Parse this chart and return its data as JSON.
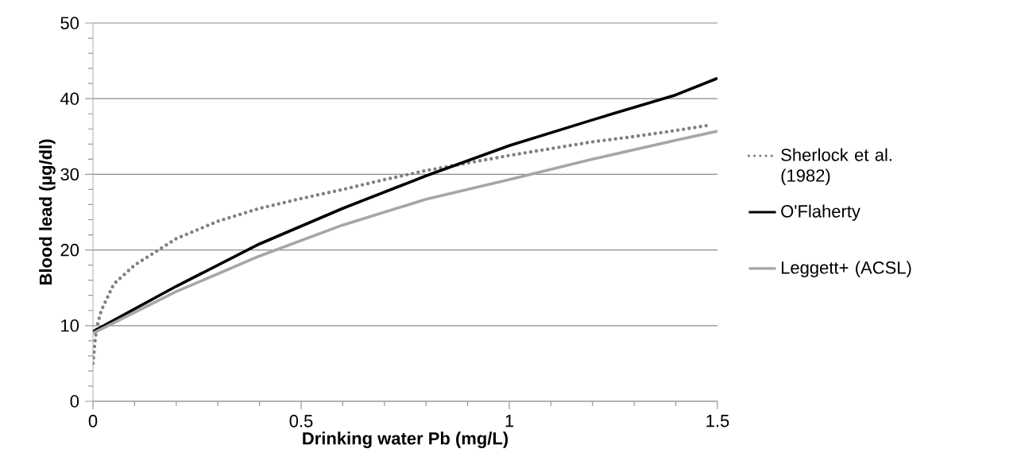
{
  "chart_data": {
    "type": "line",
    "xlabel": "Drinking water Pb (mg/L)",
    "ylabel": "Blood lead (µg/dl)",
    "xlim": [
      0,
      1.5
    ],
    "ylim": [
      0,
      50
    ],
    "xticks": [
      0,
      {
        "value": 0.1,
        "label": null
      },
      {
        "value": 0.2,
        "label": null
      },
      {
        "value": 0.3,
        "label": null
      },
      {
        "value": 0.4,
        "label": null
      },
      0.5,
      {
        "value": 0.6,
        "label": null
      },
      {
        "value": 0.7,
        "label": null
      },
      {
        "value": 0.8,
        "label": null
      },
      {
        "value": 0.9,
        "label": null
      },
      1,
      {
        "value": 1.1,
        "label": null
      },
      {
        "value": 1.2,
        "label": null
      },
      {
        "value": 1.3,
        "label": null
      },
      {
        "value": 1.4,
        "label": null
      },
      1.5
    ],
    "yticks": [
      0,
      {
        "value": 2,
        "label": null
      },
      {
        "value": 4,
        "label": null
      },
      {
        "value": 6,
        "label": null
      },
      {
        "value": 8,
        "label": null
      },
      10,
      {
        "value": 12,
        "label": null
      },
      {
        "value": 14,
        "label": null
      },
      {
        "value": 16,
        "label": null
      },
      {
        "value": 18,
        "label": null
      },
      20,
      {
        "value": 22,
        "label": null
      },
      {
        "value": 24,
        "label": null
      },
      {
        "value": 26,
        "label": null
      },
      {
        "value": 28,
        "label": null
      },
      30,
      {
        "value": 32,
        "label": null
      },
      {
        "value": 34,
        "label": null
      },
      {
        "value": 36,
        "label": null
      },
      {
        "value": 38,
        "label": null
      },
      40,
      {
        "value": 42,
        "label": null
      },
      {
        "value": 44,
        "label": null
      },
      {
        "value": 46,
        "label": null
      },
      {
        "value": 48,
        "label": null
      },
      50
    ],
    "grid": "y",
    "legend": "right",
    "series": [
      {
        "name": "Sherlock et al. (1982)",
        "color": "#808080",
        "line_style": "dotted",
        "x": [
          0,
          0.005,
          0.01,
          0.02,
          0.05,
          0.1,
          0.2,
          0.3,
          0.4,
          0.5,
          0.6,
          0.7,
          0.8,
          0.9,
          1.0,
          1.1,
          1.2,
          1.3,
          1.4,
          1.48
        ],
        "values": [
          5,
          8,
          10,
          12,
          15.5,
          18,
          21.5,
          23.8,
          25.5,
          26.8,
          28,
          29.3,
          30.5,
          31.5,
          32.5,
          33.4,
          34.3,
          35,
          35.8,
          36.5
        ]
      },
      {
        "name": "O'Flaherty",
        "color": "#000000",
        "line_style": "solid",
        "x": [
          0,
          0.2,
          0.4,
          0.6,
          0.8,
          1.0,
          1.2,
          1.4,
          1.5
        ],
        "values": [
          9.2,
          15.2,
          20.8,
          25.5,
          29.8,
          33.8,
          37.2,
          40.5,
          42.7
        ]
      },
      {
        "name": "Leggett+ (ACSL)",
        "color": "#a6a6a6",
        "line_style": "solid",
        "x": [
          0,
          0.2,
          0.4,
          0.6,
          0.8,
          1.0,
          1.2,
          1.4,
          1.5
        ],
        "values": [
          9,
          14.5,
          19.2,
          23.3,
          26.7,
          29.3,
          32,
          34.5,
          35.7
        ]
      }
    ]
  }
}
